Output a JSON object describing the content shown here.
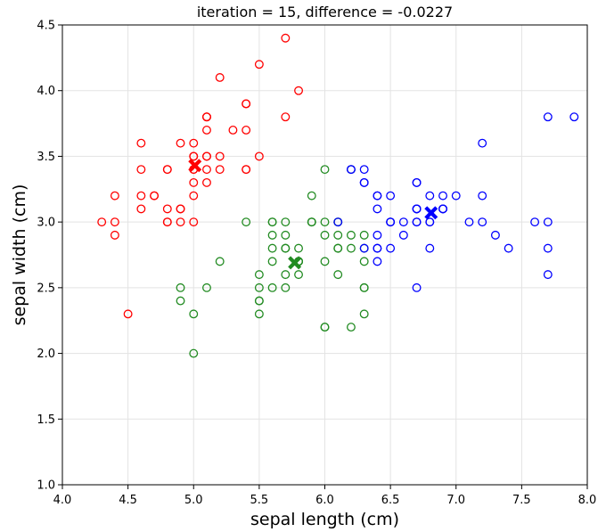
{
  "chart_data": {
    "type": "scatter",
    "title": "iteration = 15, difference = -0.0227",
    "xlabel": "sepal length (cm)",
    "ylabel": "sepal width (cm)",
    "xlim": [
      4.0,
      8.0
    ],
    "ylim": [
      1.0,
      4.5
    ],
    "xticks": [
      "4.0",
      "4.5",
      "5.0",
      "5.5",
      "6.0",
      "6.5",
      "7.0",
      "7.5",
      "8.0"
    ],
    "yticks": [
      "1.0",
      "1.5",
      "2.0",
      "2.5",
      "3.0",
      "3.5",
      "4.0",
      "4.5"
    ],
    "grid": true,
    "marker": "hollow-circle",
    "centroid_marker": "filled-x",
    "series": [
      {
        "color": "#ff0000",
        "centroid": [
          5.01,
          3.43
        ],
        "points": [
          [
            5.1,
            3.5
          ],
          [
            4.9,
            3.0
          ],
          [
            4.7,
            3.2
          ],
          [
            4.6,
            3.1
          ],
          [
            5.0,
            3.6
          ],
          [
            5.4,
            3.9
          ],
          [
            4.6,
            3.4
          ],
          [
            5.0,
            3.4
          ],
          [
            4.4,
            2.9
          ],
          [
            4.9,
            3.1
          ],
          [
            5.4,
            3.7
          ],
          [
            4.8,
            3.4
          ],
          [
            4.8,
            3.0
          ],
          [
            4.3,
            3.0
          ],
          [
            5.8,
            4.0
          ],
          [
            5.7,
            4.4
          ],
          [
            5.4,
            3.9
          ],
          [
            5.1,
            3.5
          ],
          [
            5.7,
            3.8
          ],
          [
            5.1,
            3.8
          ],
          [
            5.4,
            3.4
          ],
          [
            5.1,
            3.7
          ],
          [
            4.6,
            3.6
          ],
          [
            5.1,
            3.3
          ],
          [
            4.8,
            3.4
          ],
          [
            5.0,
            3.0
          ],
          [
            5.0,
            3.4
          ],
          [
            5.2,
            3.5
          ],
          [
            5.2,
            3.4
          ],
          [
            4.7,
            3.2
          ],
          [
            4.8,
            3.1
          ],
          [
            5.4,
            3.4
          ],
          [
            5.2,
            4.1
          ],
          [
            5.5,
            4.2
          ],
          [
            4.9,
            3.1
          ],
          [
            5.0,
            3.2
          ],
          [
            5.5,
            3.5
          ],
          [
            4.9,
            3.6
          ],
          [
            4.4,
            3.0
          ],
          [
            5.1,
            3.4
          ],
          [
            5.0,
            3.5
          ],
          [
            4.5,
            2.3
          ],
          [
            4.4,
            3.2
          ],
          [
            5.0,
            3.5
          ],
          [
            5.1,
            3.8
          ],
          [
            4.8,
            3.0
          ],
          [
            5.1,
            3.8
          ],
          [
            4.6,
            3.2
          ],
          [
            5.3,
            3.7
          ],
          [
            5.0,
            3.3
          ]
        ]
      },
      {
        "color": "#228b22",
        "centroid": [
          5.77,
          2.69
        ],
        "points": [
          [
            5.5,
            2.3
          ],
          [
            5.7,
            2.8
          ],
          [
            4.9,
            2.4
          ],
          [
            5.2,
            2.7
          ],
          [
            5.0,
            2.0
          ],
          [
            5.9,
            3.0
          ],
          [
            6.0,
            2.2
          ],
          [
            5.6,
            2.9
          ],
          [
            5.6,
            3.0
          ],
          [
            5.8,
            2.7
          ],
          [
            6.2,
            2.2
          ],
          [
            5.6,
            2.5
          ],
          [
            5.9,
            3.2
          ],
          [
            6.1,
            2.8
          ],
          [
            6.3,
            2.5
          ],
          [
            6.1,
            2.8
          ],
          [
            6.0,
            2.9
          ],
          [
            5.7,
            2.6
          ],
          [
            5.5,
            2.4
          ],
          [
            5.5,
            2.4
          ],
          [
            5.8,
            2.7
          ],
          [
            6.0,
            2.7
          ],
          [
            5.4,
            3.0
          ],
          [
            6.0,
            3.4
          ],
          [
            6.3,
            2.3
          ],
          [
            5.6,
            3.0
          ],
          [
            5.5,
            2.5
          ],
          [
            5.5,
            2.6
          ],
          [
            6.1,
            3.0
          ],
          [
            5.8,
            2.6
          ],
          [
            5.0,
            2.3
          ],
          [
            5.6,
            2.7
          ],
          [
            5.7,
            3.0
          ],
          [
            5.7,
            2.9
          ],
          [
            6.2,
            2.9
          ],
          [
            5.1,
            2.5
          ],
          [
            5.7,
            2.8
          ],
          [
            5.8,
            2.7
          ],
          [
            4.9,
            2.5
          ],
          [
            5.7,
            2.5
          ],
          [
            5.8,
            2.8
          ],
          [
            6.0,
            2.2
          ],
          [
            5.6,
            2.8
          ],
          [
            6.3,
            2.7
          ],
          [
            6.2,
            2.8
          ],
          [
            6.1,
            3.0
          ],
          [
            6.3,
            2.8
          ],
          [
            6.1,
            2.6
          ],
          [
            6.0,
            3.0
          ],
          [
            5.8,
            2.7
          ],
          [
            6.3,
            2.5
          ],
          [
            5.9,
            3.0
          ],
          [
            6.3,
            2.9
          ],
          [
            6.1,
            2.9
          ],
          [
            6.2,
            3.4
          ],
          [
            5.9,
            3.0
          ]
        ]
      },
      {
        "color": "#0000ff",
        "centroid": [
          6.81,
          3.07
        ],
        "points": [
          [
            7.0,
            3.2
          ],
          [
            6.4,
            3.2
          ],
          [
            6.9,
            3.1
          ],
          [
            6.5,
            2.8
          ],
          [
            6.3,
            3.3
          ],
          [
            6.6,
            2.9
          ],
          [
            6.7,
            3.1
          ],
          [
            6.6,
            3.0
          ],
          [
            6.8,
            2.8
          ],
          [
            6.7,
            3.0
          ],
          [
            6.4,
            2.9
          ],
          [
            6.7,
            3.1
          ],
          [
            6.3,
            3.3
          ],
          [
            7.1,
            3.0
          ],
          [
            6.5,
            3.0
          ],
          [
            7.6,
            3.0
          ],
          [
            7.3,
            2.9
          ],
          [
            6.7,
            2.5
          ],
          [
            7.2,
            3.6
          ],
          [
            6.5,
            3.2
          ],
          [
            6.4,
            2.7
          ],
          [
            6.8,
            3.0
          ],
          [
            6.4,
            3.2
          ],
          [
            6.5,
            3.0
          ],
          [
            7.7,
            3.8
          ],
          [
            7.7,
            2.6
          ],
          [
            6.9,
            3.2
          ],
          [
            7.7,
            2.8
          ],
          [
            6.7,
            3.3
          ],
          [
            7.2,
            3.2
          ],
          [
            6.4,
            2.8
          ],
          [
            7.2,
            3.0
          ],
          [
            7.4,
            2.8
          ],
          [
            7.9,
            3.8
          ],
          [
            6.4,
            2.8
          ],
          [
            6.3,
            2.8
          ],
          [
            6.1,
            3.0
          ],
          [
            7.7,
            3.0
          ],
          [
            6.3,
            3.4
          ],
          [
            6.4,
            3.1
          ],
          [
            6.9,
            3.1
          ],
          [
            6.7,
            3.1
          ],
          [
            6.9,
            3.1
          ],
          [
            6.8,
            3.2
          ],
          [
            6.7,
            3.3
          ],
          [
            6.7,
            3.0
          ],
          [
            6.5,
            3.0
          ],
          [
            6.2,
            3.4
          ],
          [
            6.8,
            3.0
          ],
          [
            6.2,
            3.4
          ]
        ]
      }
    ]
  }
}
